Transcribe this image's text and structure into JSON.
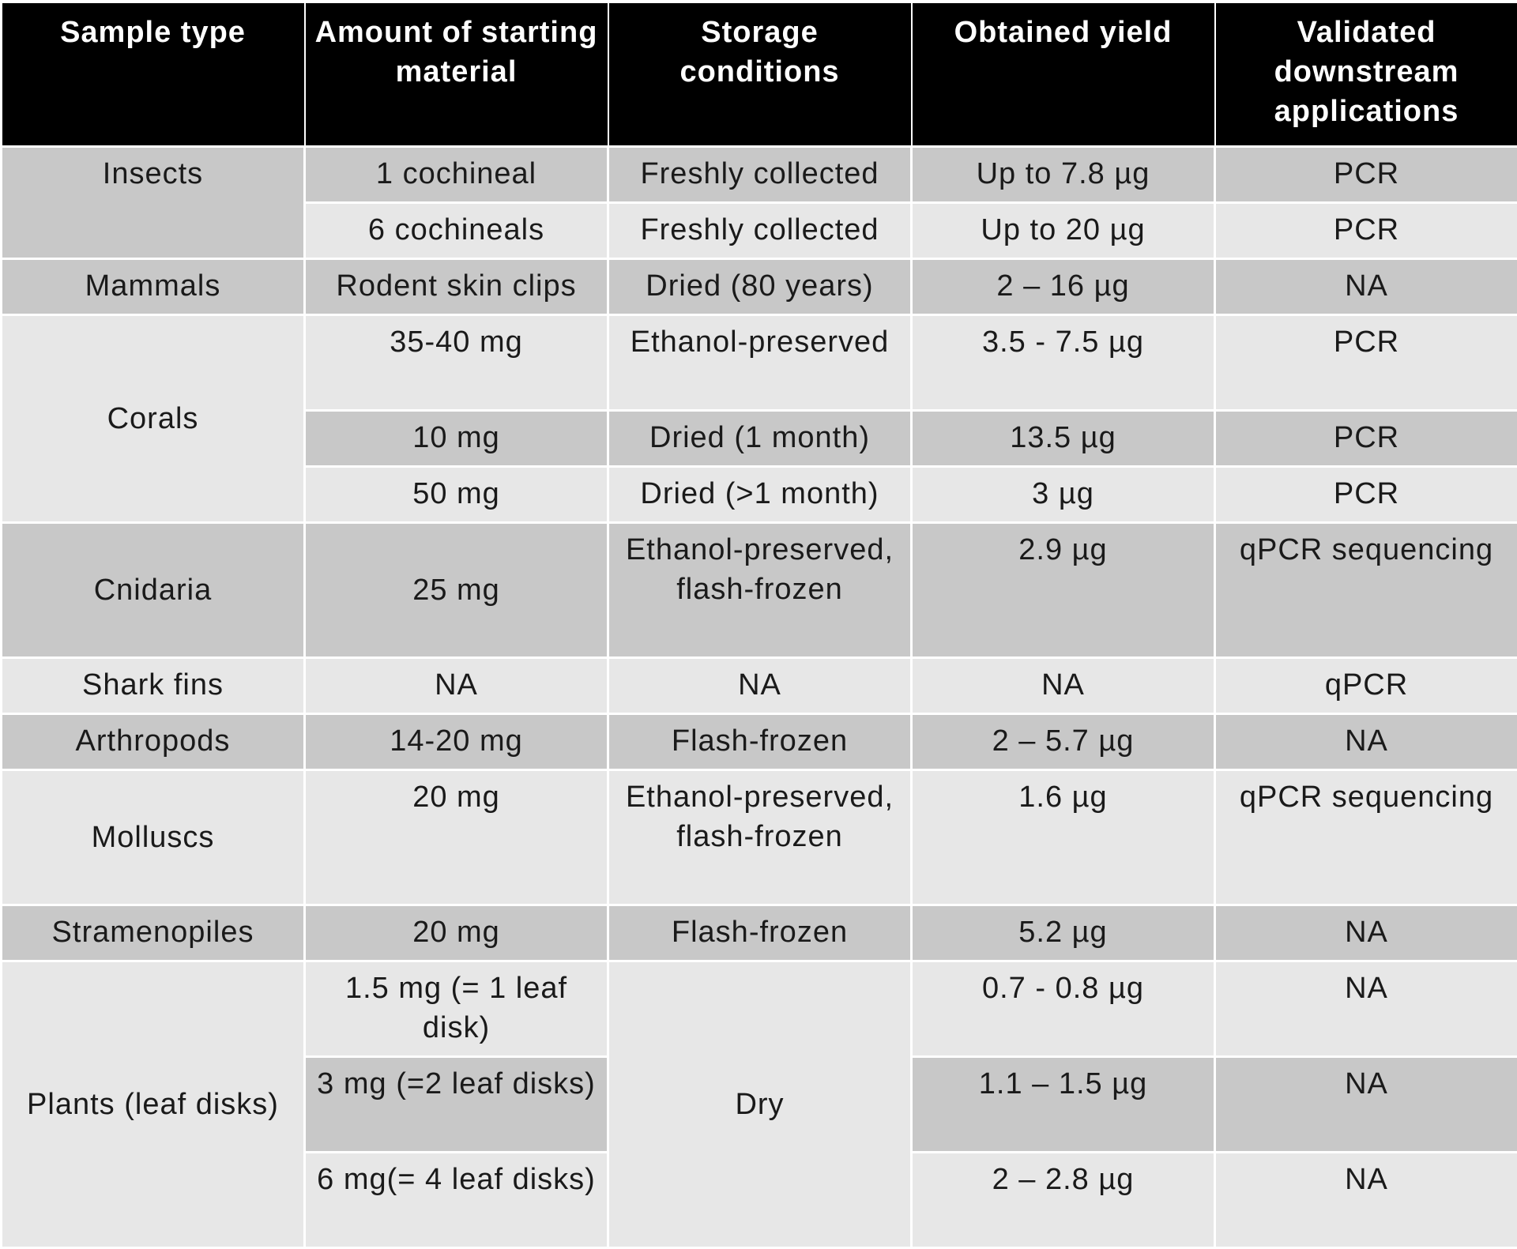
{
  "table": {
    "headers": [
      "Sample type",
      "Amount of starting material",
      "Storage conditions",
      "Obtained yield",
      "Validated downstream applications"
    ],
    "rows": [
      {
        "sample": "Insects",
        "amount": "1 cochineal",
        "storage": "Freshly collected",
        "yield": "Up to 7.8 µg",
        "application": "PCR"
      },
      {
        "amount": "6 cochineals",
        "storage": "Freshly collected",
        "yield": "Up to 20 µg",
        "application": "PCR"
      },
      {
        "sample": "Mammals",
        "amount": "Rodent skin clips",
        "storage": "Dried (80 years)",
        "yield": "2 – 16 µg",
        "application": "NA"
      },
      {
        "sample": "Corals",
        "amount": "35-40 mg",
        "storage": "Ethanol-preserved",
        "yield": "3.5 - 7.5 µg",
        "application": "PCR"
      },
      {
        "amount": "10 mg",
        "storage": "Dried (1 month)",
        "yield": "13.5 µg",
        "application": "PCR"
      },
      {
        "amount": "50 mg",
        "storage": "Dried (>1 month)",
        "yield": "3 µg",
        "application": "PCR"
      },
      {
        "sample": "Cnidaria",
        "amount": "25 mg",
        "storage": "Ethanol-preserved, flash-frozen",
        "yield": "2.9 µg",
        "application": "qPCR sequencing"
      },
      {
        "sample": "Shark fins",
        "amount": "NA",
        "storage": "NA",
        "yield": "NA",
        "application": "qPCR"
      },
      {
        "sample": "Arthropods",
        "amount": "14-20 mg",
        "storage": "Flash-frozen",
        "yield": "2 – 5.7 µg",
        "application": "NA"
      },
      {
        "sample": "Molluscs",
        "amount": "20 mg",
        "storage": "Ethanol-preserved, flash-frozen",
        "yield": "1.6 µg",
        "application": "qPCR sequencing"
      },
      {
        "sample": "Stramenopiles",
        "amount": "20 mg",
        "storage": "Flash-frozen",
        "yield": "5.2 µg",
        "application": "NA"
      },
      {
        "sample": "Plants (leaf disks)",
        "amount": "1.5 mg (= 1 leaf disk)",
        "storage": "Dry",
        "yield": "0.7 - 0.8 µg",
        "application": "NA"
      },
      {
        "amount": "3 mg (=2 leaf disks)",
        "yield": "1.1 – 1.5 µg",
        "application": "NA"
      },
      {
        "amount": "6 mg(= 4 leaf disks)",
        "yield": "2 – 2.8 µg",
        "application": "NA"
      }
    ]
  }
}
